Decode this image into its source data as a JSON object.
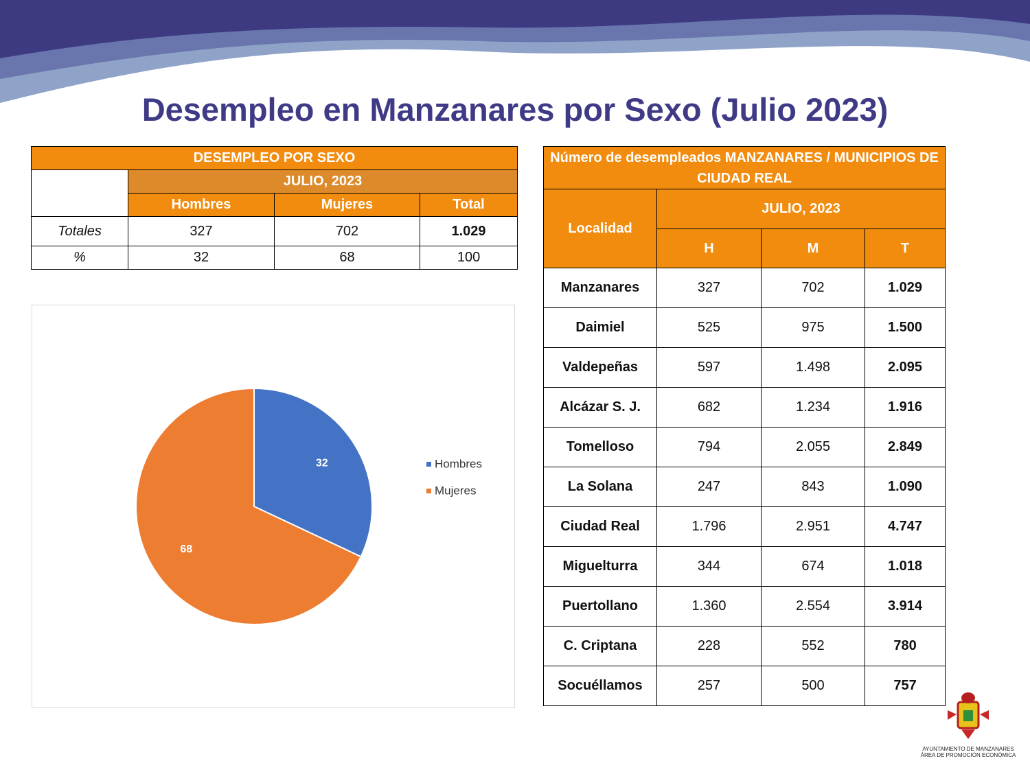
{
  "title": "Desempleo en Manzanares por Sexo (Julio 2023)",
  "table1": {
    "title": "DESEMPLEO POR SEXO",
    "period": "JULIO, 2023",
    "columns": [
      "Hombres",
      "Mujeres",
      "Total"
    ],
    "rows": [
      [
        "Totales",
        "327",
        "702",
        "1.029"
      ],
      [
        "%",
        "32",
        "68",
        "100"
      ]
    ]
  },
  "chart_data": {
    "type": "pie",
    "categories": [
      "Hombres",
      "Mujeres"
    ],
    "values": [
      32,
      68
    ],
    "colors": [
      "#4472c4",
      "#ed7d31"
    ],
    "legend": "right"
  },
  "table2": {
    "title": "Número de desempleados MANZANARES / MUNICIPIOS DE CIUDAD REAL",
    "row_header": "Localidad",
    "period": "JULIO, 2023",
    "columns": [
      "H",
      "M",
      "T"
    ],
    "rows": [
      [
        "Manzanares",
        "327",
        "702",
        "1.029"
      ],
      [
        "Daimiel",
        "525",
        "975",
        "1.500"
      ],
      [
        "Valdepeñas",
        "597",
        "1.498",
        "2.095"
      ],
      [
        "Alcázar S. J.",
        "682",
        "1.234",
        "1.916"
      ],
      [
        "Tomelloso",
        "794",
        "2.055",
        "2.849"
      ],
      [
        "La Solana",
        "247",
        "843",
        "1.090"
      ],
      [
        "Ciudad Real",
        "1.796",
        "2.951",
        "4.747"
      ],
      [
        "Miguelturra",
        "344",
        "674",
        "1.018"
      ],
      [
        "Puertollano",
        "1.360",
        "2.554",
        "3.914"
      ],
      [
        "C. Criptana",
        "228",
        "552",
        "780"
      ],
      [
        "Socuéllamos",
        "257",
        "500",
        "757"
      ]
    ]
  },
  "logo": {
    "line1": "AYUNTAMIENTO DE MANZANARES",
    "line2": "ÁREA DE PROMOCIÓN ECONÓMICA"
  }
}
